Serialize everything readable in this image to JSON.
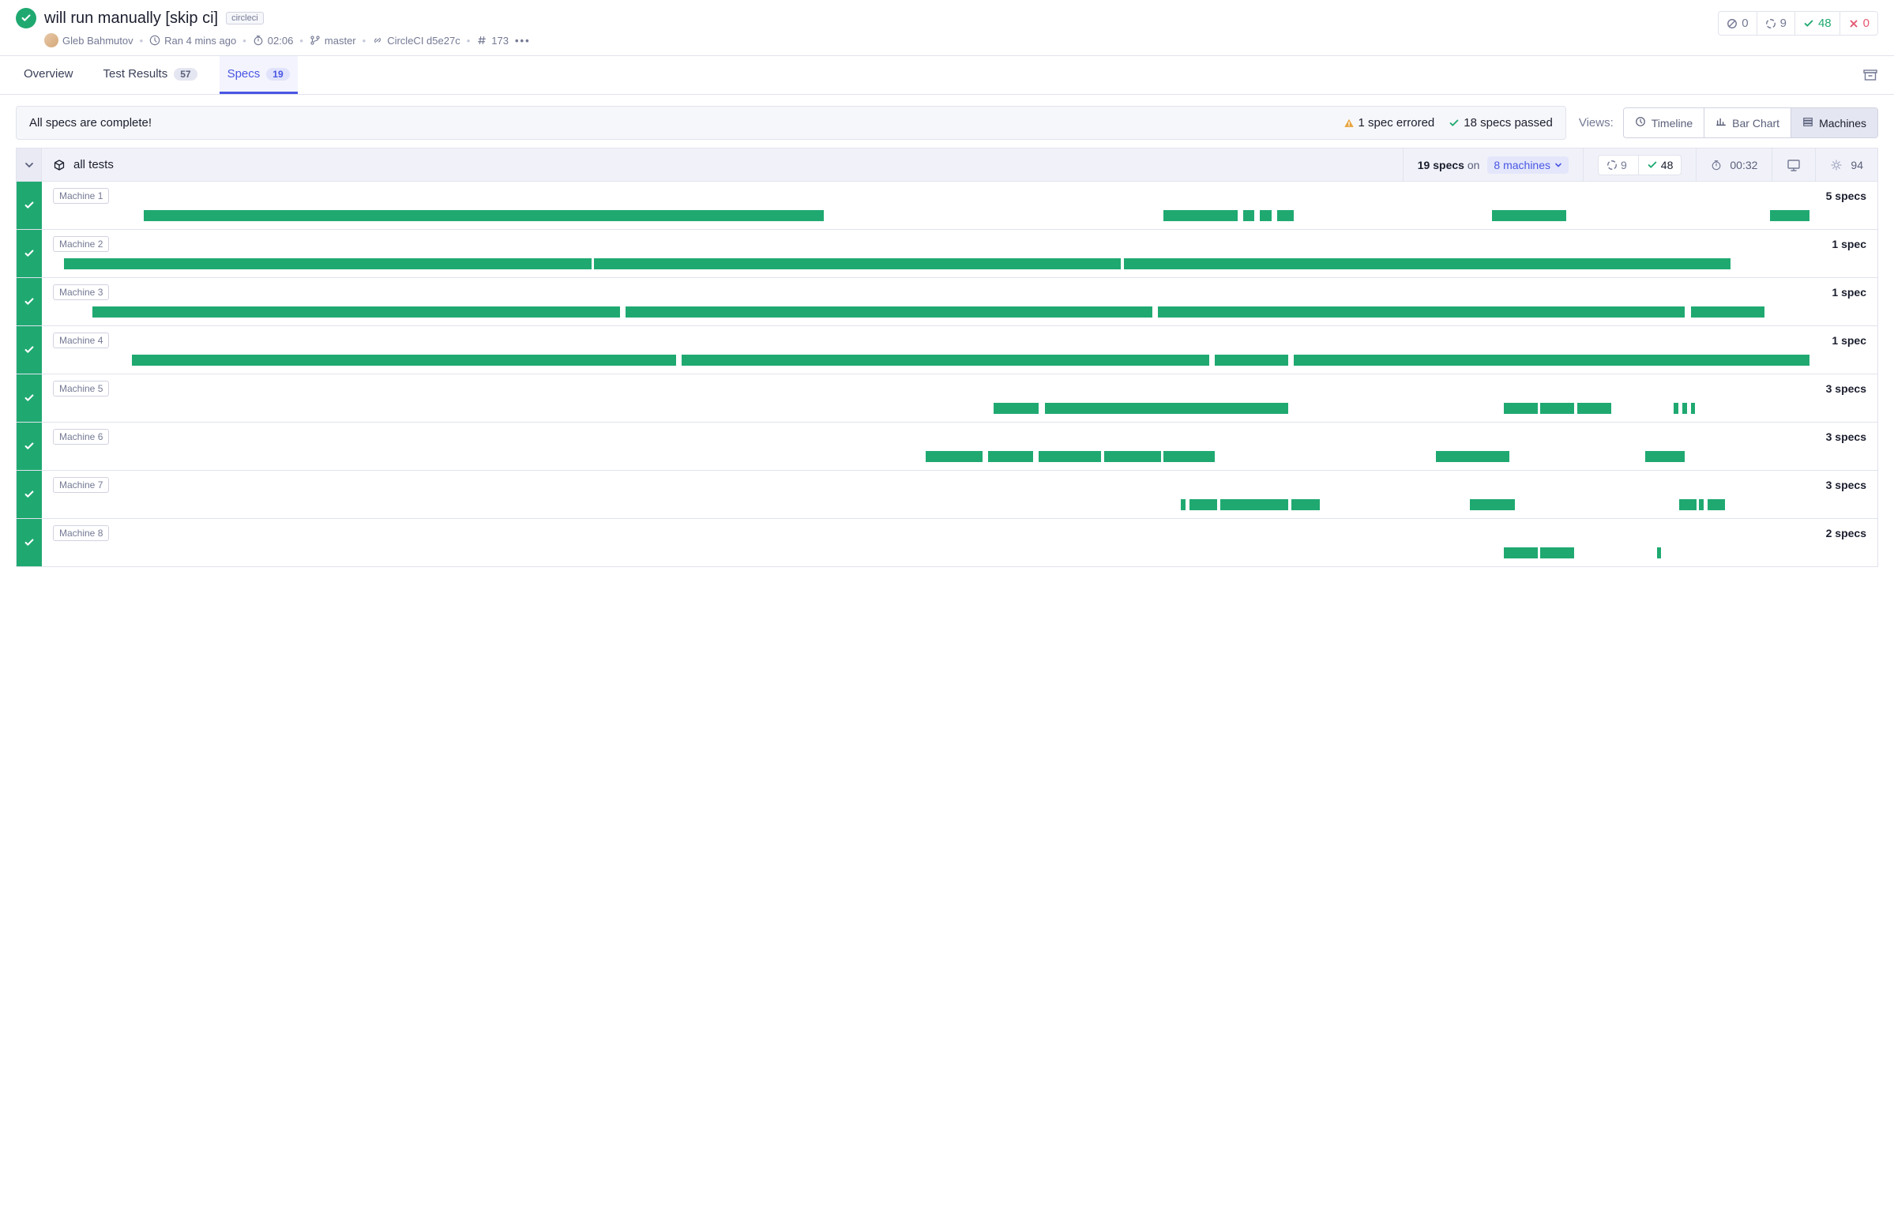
{
  "colors": {
    "green": "#1fa971",
    "red": "#e45770",
    "gray": "#747994",
    "blue": "#4956e3",
    "orange": "#e8a33d"
  },
  "header": {
    "title": "will run manually [skip ci]",
    "tag": "circleci",
    "author": "Gleb Bahmutov",
    "ran": "Ran 4 mins ago",
    "duration": "02:06",
    "branch": "master",
    "ci": "CircleCI d5e27c",
    "build": "173",
    "stats": {
      "skipped": 0,
      "pending": 9,
      "passed": 48,
      "failed": 0
    }
  },
  "tabs": [
    {
      "label": "Overview",
      "badge": null,
      "active": false
    },
    {
      "label": "Test Results",
      "badge": "57",
      "active": false
    },
    {
      "label": "Specs",
      "badge": "19",
      "active": true
    }
  ],
  "banner": {
    "message": "All specs are complete!",
    "errored": "1 spec errored",
    "passed": "18 specs passed"
  },
  "views": {
    "label": "Views:",
    "options": [
      {
        "label": "Timeline",
        "active": false
      },
      {
        "label": "Bar Chart",
        "active": false
      },
      {
        "label": "Machines",
        "active": true
      }
    ]
  },
  "summary": {
    "all_tests": "all tests",
    "specs_count": "19 specs",
    "on_label": "on",
    "machines_label": "8 machines",
    "pending": 9,
    "passed": 48,
    "duration": "00:32",
    "screenshots": 94
  },
  "timeline_total": 32,
  "machines": [
    {
      "name": "Machine 1",
      "specs": "5 specs",
      "segments": [
        {
          "start": 1.6,
          "width": 12.0
        },
        {
          "start": 19.6,
          "width": 1.3
        },
        {
          "start": 21.0,
          "width": 0.2
        },
        {
          "start": 21.3,
          "width": 0.2
        },
        {
          "start": 21.6,
          "width": 0.3
        },
        {
          "start": 25.4,
          "width": 1.3
        },
        {
          "start": 30.3,
          "width": 0.7
        }
      ]
    },
    {
      "name": "Machine 2",
      "specs": "1 spec",
      "segments": [
        {
          "start": 0.2,
          "width": 9.3
        },
        {
          "start": 9.55,
          "width": 9.3
        },
        {
          "start": 18.9,
          "width": 10.7
        }
      ]
    },
    {
      "name": "Machine 3",
      "specs": "1 spec",
      "segments": [
        {
          "start": 0.7,
          "width": 9.3
        },
        {
          "start": 10.1,
          "width": 9.3
        },
        {
          "start": 19.5,
          "width": 9.3
        },
        {
          "start": 28.9,
          "width": 1.3
        }
      ]
    },
    {
      "name": "Machine 4",
      "specs": "1 spec",
      "segments": [
        {
          "start": 1.4,
          "width": 9.6
        },
        {
          "start": 11.1,
          "width": 9.3
        },
        {
          "start": 20.5,
          "width": 1.3
        },
        {
          "start": 21.9,
          "width": 9.1
        }
      ]
    },
    {
      "name": "Machine 5",
      "specs": "3 specs",
      "segments": [
        {
          "start": 16.6,
          "width": 0.8
        },
        {
          "start": 17.5,
          "width": 4.3
        },
        {
          "start": 25.6,
          "width": 0.6
        },
        {
          "start": 26.25,
          "width": 0.6
        },
        {
          "start": 26.9,
          "width": 0.6
        },
        {
          "start": 28.6,
          "width": 0.08
        },
        {
          "start": 28.75,
          "width": 0.08
        },
        {
          "start": 28.9,
          "width": 0.08
        }
      ]
    },
    {
      "name": "Machine 6",
      "specs": "3 specs",
      "segments": [
        {
          "start": 15.4,
          "width": 1.0
        },
        {
          "start": 16.5,
          "width": 0.8
        },
        {
          "start": 17.4,
          "width": 1.1
        },
        {
          "start": 18.55,
          "width": 1.0
        },
        {
          "start": 19.6,
          "width": 0.9
        },
        {
          "start": 24.4,
          "width": 1.3
        },
        {
          "start": 28.1,
          "width": 0.7
        }
      ]
    },
    {
      "name": "Machine 7",
      "specs": "3 specs",
      "segments": [
        {
          "start": 19.9,
          "width": 0.08
        },
        {
          "start": 20.05,
          "width": 0.5
        },
        {
          "start": 20.6,
          "width": 1.2
        },
        {
          "start": 21.85,
          "width": 0.5
        },
        {
          "start": 25.0,
          "width": 0.8
        },
        {
          "start": 28.7,
          "width": 0.3
        },
        {
          "start": 29.05,
          "width": 0.08
        },
        {
          "start": 29.2,
          "width": 0.3
        }
      ]
    },
    {
      "name": "Machine 8",
      "specs": "2 specs",
      "segments": [
        {
          "start": 25.6,
          "width": 0.6
        },
        {
          "start": 26.25,
          "width": 0.6
        },
        {
          "start": 28.3,
          "width": 0.08
        }
      ]
    }
  ]
}
